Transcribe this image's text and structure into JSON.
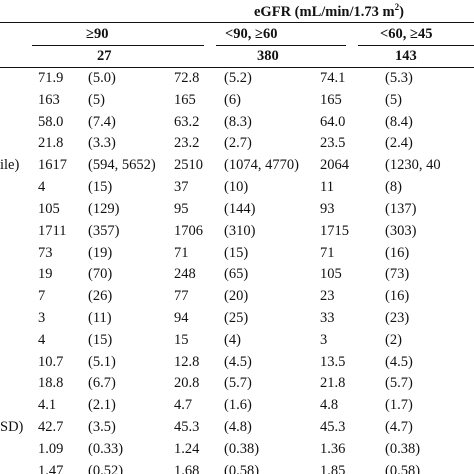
{
  "table": {
    "header": {
      "title": "eGFR (mL/min/1.73 m",
      "title_sup": "2",
      "title_close": ")",
      "groups": [
        {
          "label": "≥90",
          "n": "27"
        },
        {
          "label": "<90, ≥60",
          "n": "380"
        },
        {
          "label": "<60, ≥45",
          "n": "143"
        }
      ]
    },
    "row_label_fragments": [
      "",
      "",
      "",
      "",
      "ile)",
      "",
      "",
      "",
      "",
      "",
      "",
      "",
      "",
      "",
      "",
      "",
      "SD)",
      "",
      ""
    ],
    "rows": [
      [
        [
          "71.9",
          "(5.0)"
        ],
        [
          "72.8",
          "(5.2)"
        ],
        [
          "74.1",
          "(5.3)"
        ]
      ],
      [
        [
          "163",
          "(5)"
        ],
        [
          "165",
          "(6)"
        ],
        [
          "165",
          "(5)"
        ]
      ],
      [
        [
          "58.0",
          "(7.4)"
        ],
        [
          "63.2",
          "(8.3)"
        ],
        [
          "64.0",
          "(8.4)"
        ]
      ],
      [
        [
          "21.8",
          "(3.3)"
        ],
        [
          "23.2",
          "(2.7)"
        ],
        [
          "23.5",
          "(2.4)"
        ]
      ],
      [
        [
          "1617",
          "(594, 5652)"
        ],
        [
          "2510",
          "(1074, 4770)"
        ],
        [
          "2064",
          "(1230, 40"
        ]
      ],
      [
        [
          "4",
          "(15)"
        ],
        [
          "37",
          "(10)"
        ],
        [
          "11",
          "(8)"
        ]
      ],
      [
        [
          "105",
          "(129)"
        ],
        [
          "95",
          "(144)"
        ],
        [
          "93",
          "(137)"
        ]
      ],
      [
        [
          "1711",
          "(357)"
        ],
        [
          "1706",
          "(310)"
        ],
        [
          "1715",
          "(303)"
        ]
      ],
      [
        [
          "73",
          "(19)"
        ],
        [
          "71",
          "(15)"
        ],
        [
          "71",
          "(16)"
        ]
      ],
      [
        [
          "19",
          "(70)"
        ],
        [
          "248",
          "(65)"
        ],
        [
          "105",
          "(73)"
        ]
      ],
      [
        [
          "7",
          "(26)"
        ],
        [
          "77",
          "(20)"
        ],
        [
          "23",
          "(16)"
        ]
      ],
      [
        [
          "3",
          "(11)"
        ],
        [
          "94",
          "(25)"
        ],
        [
          "33",
          "(23)"
        ]
      ],
      [
        [
          "4",
          "(15)"
        ],
        [
          "15",
          "(4)"
        ],
        [
          "3",
          "(2)"
        ]
      ],
      [
        [
          "10.7",
          "(5.1)"
        ],
        [
          "12.8",
          "(4.5)"
        ],
        [
          "13.5",
          "(4.5)"
        ]
      ],
      [
        [
          "18.8",
          "(6.7)"
        ],
        [
          "20.8",
          "(5.7)"
        ],
        [
          "21.8",
          "(5.7)"
        ]
      ],
      [
        [
          "4.1",
          "(2.1)"
        ],
        [
          "4.7",
          "(1.6)"
        ],
        [
          "4.8",
          "(1.7)"
        ]
      ],
      [
        [
          "42.7",
          "(3.5)"
        ],
        [
          "45.3",
          "(4.8)"
        ],
        [
          "45.3",
          "(4.7)"
        ]
      ],
      [
        [
          "1.09",
          "(0.33)"
        ],
        [
          "1.24",
          "(0.38)"
        ],
        [
          "1.36",
          "(0.38)"
        ]
      ],
      [
        [
          "1.47",
          "(0.52)"
        ],
        [
          "1.68",
          "(0.58)"
        ],
        [
          "1.85",
          "(0.58)"
        ]
      ]
    ]
  }
}
